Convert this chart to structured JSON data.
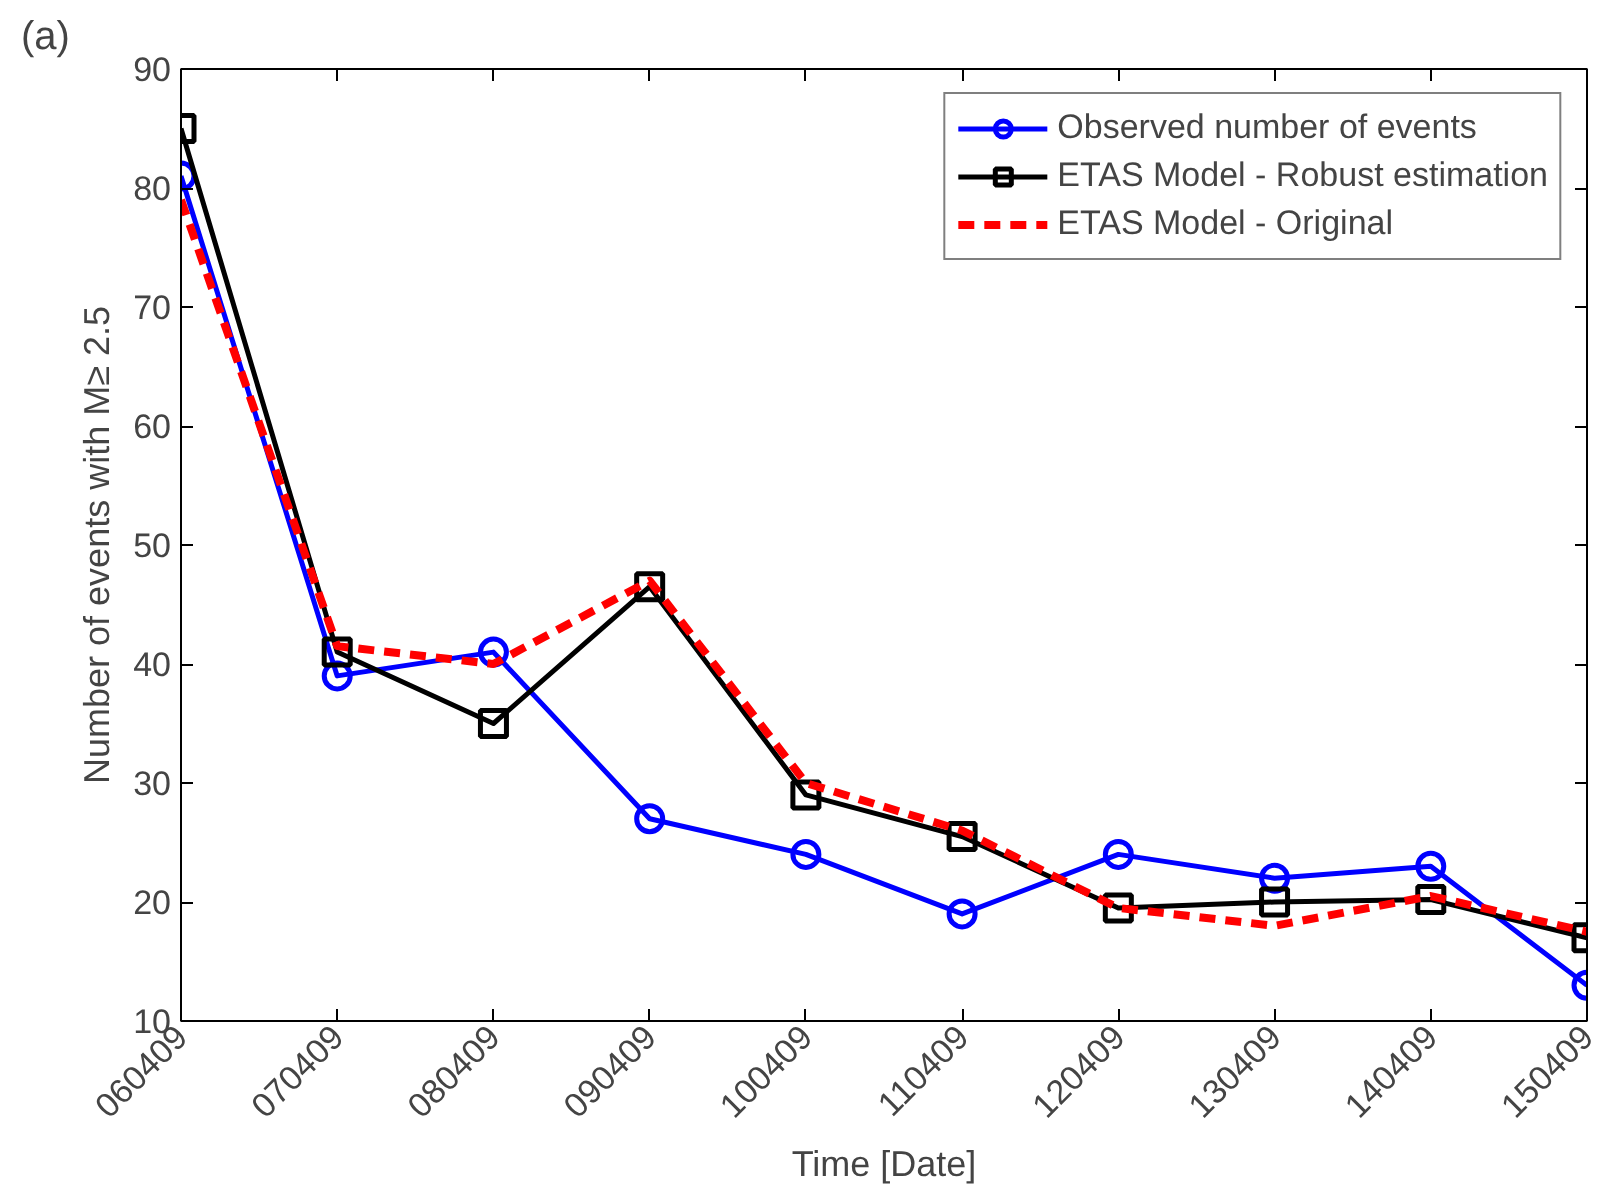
{
  "chart_data": {
    "type": "line",
    "xlabel": "Time [Date]",
    "ylabel": "Number of events with M≥ 2.5",
    "annotations": [
      "(a)"
    ],
    "categories": [
      "060409",
      "070409",
      "080409",
      "090409",
      "100409",
      "110409",
      "120409",
      "130409",
      "140409",
      "150409"
    ],
    "ylim": [
      10,
      90
    ],
    "yticks": [
      10,
      20,
      30,
      40,
      50,
      60,
      70,
      80,
      90
    ],
    "grid": false,
    "legend": "top right",
    "series": [
      {
        "name": "Observed number of events",
        "color": "#0000ff",
        "marker": "circle",
        "line_style": "solid",
        "values": [
          81,
          39,
          41,
          27,
          24,
          19,
          24,
          22,
          23,
          13
        ]
      },
      {
        "name": "ETAS Model - Robust estimation",
        "color": "#000000",
        "marker": "square",
        "line_style": "solid",
        "values": [
          85,
          41,
          35,
          46.5,
          29,
          25.5,
          19.5,
          20,
          20.2,
          17
        ]
      },
      {
        "name": "ETAS Model - Original",
        "color": "#ff0000",
        "marker": "none",
        "line_style": "dashed",
        "values": [
          79,
          41.5,
          40,
          47,
          30,
          26,
          19.5,
          18,
          20.5,
          17.5
        ]
      }
    ]
  }
}
